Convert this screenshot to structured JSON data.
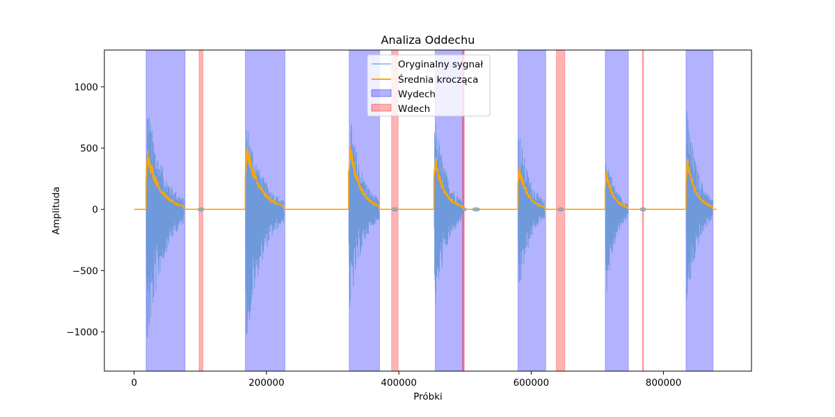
{
  "chart_data": {
    "type": "line",
    "title": "Analiza Oddechu",
    "xlabel": "Próbki",
    "ylabel": "Amplituda",
    "xlim": [
      -45000,
      933000
    ],
    "ylim": [
      -1320,
      1300
    ],
    "x_ticks": [
      0,
      200000,
      400000,
      600000,
      800000
    ],
    "x_tick_labels": [
      "0",
      "200000",
      "400000",
      "600000",
      "800000"
    ],
    "y_ticks": [
      -1000,
      -500,
      0,
      500,
      1000
    ],
    "y_tick_labels": [
      "−1000",
      "−500",
      "0",
      "500",
      "1000"
    ],
    "grid": false,
    "legend_position": "upper center",
    "colors": {
      "original": "#6a98d9",
      "moving_average": "#ffa500",
      "exhale": "#0000ff",
      "inhale": "#ff0000"
    },
    "series": [
      {
        "name": "Oryginalny sygnał",
        "kind": "envelope",
        "segments": [
          {
            "start": 18000,
            "end": 75000,
            "peak_max": 920,
            "peak_min": -1200
          },
          {
            "start": 168000,
            "end": 226000,
            "peak_max": 760,
            "peak_min": -1130
          },
          {
            "start": 324000,
            "end": 370000,
            "peak_max": 850,
            "peak_min": -900
          },
          {
            "start": 453000,
            "end": 497000,
            "peak_max": 800,
            "peak_min": -880
          },
          {
            "start": 580000,
            "end": 620000,
            "peak_max": 720,
            "peak_min": -760
          },
          {
            "start": 712000,
            "end": 746000,
            "peak_max": 520,
            "peak_min": -760
          },
          {
            "start": 834000,
            "end": 874000,
            "peak_max": 880,
            "peak_min": -870
          }
        ]
      },
      {
        "name": "Średnia krocząca",
        "kind": "decay",
        "x_range": [
          0,
          880000
        ],
        "segments": [
          {
            "start": 18000,
            "end": 75000,
            "peak": 510
          },
          {
            "start": 168000,
            "end": 226000,
            "peak": 560
          },
          {
            "start": 324000,
            "end": 370000,
            "peak": 580
          },
          {
            "start": 453000,
            "end": 497000,
            "peak": 450
          },
          {
            "start": 580000,
            "end": 620000,
            "peak": 380
          },
          {
            "start": 712000,
            "end": 746000,
            "peak": 330
          },
          {
            "start": 834000,
            "end": 874000,
            "peak": 450
          }
        ]
      }
    ],
    "regions": [
      {
        "name": "Wydech",
        "spans": [
          [
            18000,
            77000
          ],
          [
            168000,
            228000
          ],
          [
            325000,
            371000
          ],
          [
            455000,
            498000
          ],
          [
            580000,
            622000
          ],
          [
            712000,
            747000
          ],
          [
            834000,
            875000
          ]
        ]
      },
      {
        "name": "Wdech",
        "spans": [
          [
            98000,
            104000
          ],
          [
            389000,
            399000
          ],
          [
            496000,
            499000
          ],
          [
            638000,
            651000
          ],
          [
            768000,
            770000
          ]
        ]
      }
    ],
    "legend": [
      "Oryginalny sygnał",
      "Średnia krocząca",
      "Wydech",
      "Wdech"
    ]
  }
}
